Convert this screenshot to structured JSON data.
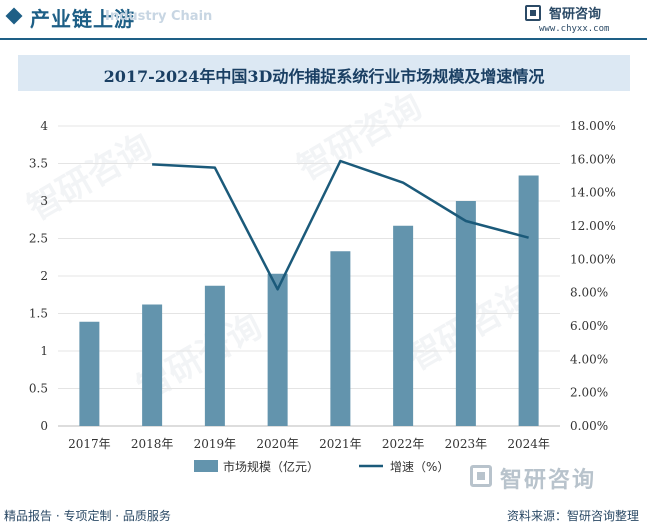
{
  "header": {
    "section_title": "产业链上游",
    "section_subtitle": "Industry Chain",
    "brand_name": "智研咨询",
    "brand_url": "www.chyxx.com"
  },
  "chart_data": {
    "type": "bar",
    "title": "2017-2024年中国3D动作捕捉系统行业市场规模及增速情况",
    "categories": [
      "2017年",
      "2018年",
      "2019年",
      "2020年",
      "2021年",
      "2022年",
      "2023年",
      "2024年"
    ],
    "series": [
      {
        "name": "市场规模（亿元）",
        "type": "bar",
        "axis": "left",
        "color": "#6394ad",
        "values": [
          1.39,
          1.62,
          1.87,
          2.03,
          2.33,
          2.67,
          3.0,
          3.34
        ]
      },
      {
        "name": "增速（%）",
        "type": "line",
        "axis": "right",
        "color": "#1b5a7a",
        "values": [
          null,
          15.7,
          15.5,
          8.2,
          15.9,
          14.6,
          12.3,
          11.3
        ]
      }
    ],
    "y_left": {
      "min": 0,
      "max": 4,
      "step": 0.5,
      "ticks": [
        "0",
        "0.5",
        "1",
        "1.5",
        "2",
        "2.5",
        "3",
        "3.5",
        "4"
      ]
    },
    "y_right": {
      "min": 0,
      "max": 18,
      "step": 2,
      "ticks": [
        "0.00%",
        "2.00%",
        "4.00%",
        "6.00%",
        "8.00%",
        "10.00%",
        "12.00%",
        "14.00%",
        "16.00%",
        "18.00%"
      ]
    },
    "grid": true,
    "legend_position": "bottom-center"
  },
  "footer": {
    "left_text": "精品报告 · 专项定制 · 品质服务",
    "source": "资料来源：智研咨询整理",
    "bottom_brand": "智研咨询"
  }
}
